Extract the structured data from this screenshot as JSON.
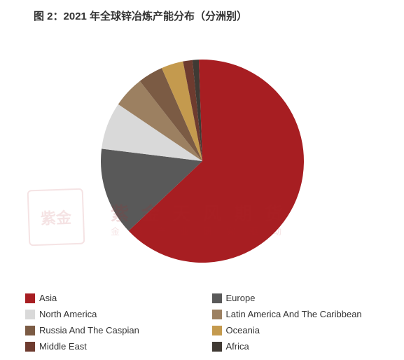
{
  "title": {
    "text": "图 2：2021 年全球锌冶炼产能分布（分洲别）",
    "fontsize": 15,
    "color": "#333333",
    "weight": "bold"
  },
  "chart": {
    "type": "pie",
    "diameter": 290,
    "start_angle_deg": 268,
    "direction": "clockwise",
    "background_color": "#ffffff",
    "slices": [
      {
        "label": "Asia",
        "value": 63.5,
        "color": "#a71e22"
      },
      {
        "label": "Europe",
        "value": 14.0,
        "color": "#595959"
      },
      {
        "label": "North America",
        "value": 7.5,
        "color": "#d9d9d9"
      },
      {
        "label": "Latin America And The Caribbean",
        "value": 5.0,
        "color": "#9c8061"
      },
      {
        "label": "Russia And The Caspian",
        "value": 4.0,
        "color": "#7b5b44"
      },
      {
        "label": "Oceania",
        "value": 3.5,
        "color": "#c49a4e"
      },
      {
        "label": "Middle East",
        "value": 1.5,
        "color": "#6e3b2f"
      },
      {
        "label": "Africa",
        "value": 1.0,
        "color": "#403a34"
      }
    ]
  },
  "legend": {
    "fontsize": 13,
    "swatch_size": 14,
    "text_color": "#333333",
    "columns": 2,
    "items": [
      {
        "label": "Asia",
        "color": "#a71e22"
      },
      {
        "label": "Europe",
        "color": "#595959"
      },
      {
        "label": "North America",
        "color": "#d9d9d9"
      },
      {
        "label": "Latin America And The Caribbean",
        "color": "#9c8061"
      },
      {
        "label": "Russia And The Caspian",
        "color": "#7b5b44"
      },
      {
        "label": "Oceania",
        "color": "#c49a4e"
      },
      {
        "label": "Middle East",
        "color": "#6e3b2f"
      },
      {
        "label": "Africa",
        "color": "#403a34"
      }
    ]
  },
  "watermark": {
    "main": "紫金天风期货",
    "sub": "金属产业研究驱动",
    "seal": "紫金",
    "color": "#b0252a",
    "main_fontsize": 26,
    "sub_fontsize": 13
  }
}
